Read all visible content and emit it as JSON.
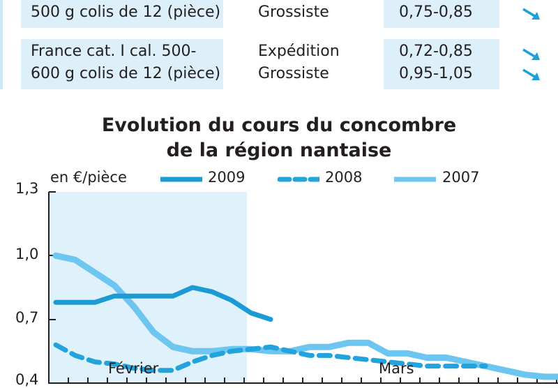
{
  "table": {
    "rows": [
      {
        "product": [
          "500 g colis de 12 (pièce)"
        ],
        "stages": [
          "Grossiste"
        ],
        "prices": [
          "0,75-0,85"
        ],
        "trends": [
          "down-arrow-icon"
        ]
      },
      {
        "product": [
          "France cat. I cal. 500-",
          "600 g colis de 12 (pièce)"
        ],
        "stages": [
          "Expédition",
          "Grossiste"
        ],
        "prices": [
          "0,72-0,85",
          "0,95-1,05"
        ],
        "trends": [
          "down-arrow-icon",
          "down-arrow-icon"
        ]
      }
    ]
  },
  "chart_data": {
    "type": "line",
    "title": "Evolution du cours du concombre de la région nantaise",
    "title_lines": [
      "Evolution du cours du concombre",
      "de la région nantaise"
    ],
    "ylabel": "en €/pièce",
    "ylim": [
      0.4,
      1.3
    ],
    "yticks": [
      {
        "value": 1.3,
        "label": "1,3"
      },
      {
        "value": 1.0,
        "label": "1,0"
      },
      {
        "value": 0.7,
        "label": "0,7"
      },
      {
        "value": 0.4,
        "label": "0,4"
      }
    ],
    "month_labels": [
      "Février",
      "Mars"
    ],
    "grid": false,
    "legend_position": "top",
    "series": [
      {
        "name": "2009",
        "color": "#1b9ad6",
        "style": "solid",
        "values": [
          0.78,
          0.78,
          0.78,
          0.81,
          0.81,
          0.81,
          0.81,
          0.85,
          0.83,
          0.79,
          0.73,
          0.7
        ]
      },
      {
        "name": "2008",
        "color": "#22a3dc",
        "style": "dashed",
        "values": [
          0.58,
          0.53,
          0.5,
          0.49,
          0.47,
          0.46,
          0.46,
          0.5,
          0.53,
          0.55,
          0.56,
          0.57,
          0.55,
          0.53,
          0.53,
          0.52,
          0.51,
          0.5,
          0.49,
          0.48,
          0.48,
          0.48,
          0.48
        ]
      },
      {
        "name": "2007",
        "color": "#6cc6ef",
        "style": "solid",
        "values": [
          1.0,
          0.98,
          0.92,
          0.86,
          0.76,
          0.64,
          0.57,
          0.55,
          0.55,
          0.56,
          0.56,
          0.55,
          0.55,
          0.57,
          0.57,
          0.59,
          0.59,
          0.54,
          0.54,
          0.52,
          0.52,
          0.5,
          0.48,
          0.46,
          0.44,
          0.43,
          0.43
        ]
      }
    ]
  }
}
